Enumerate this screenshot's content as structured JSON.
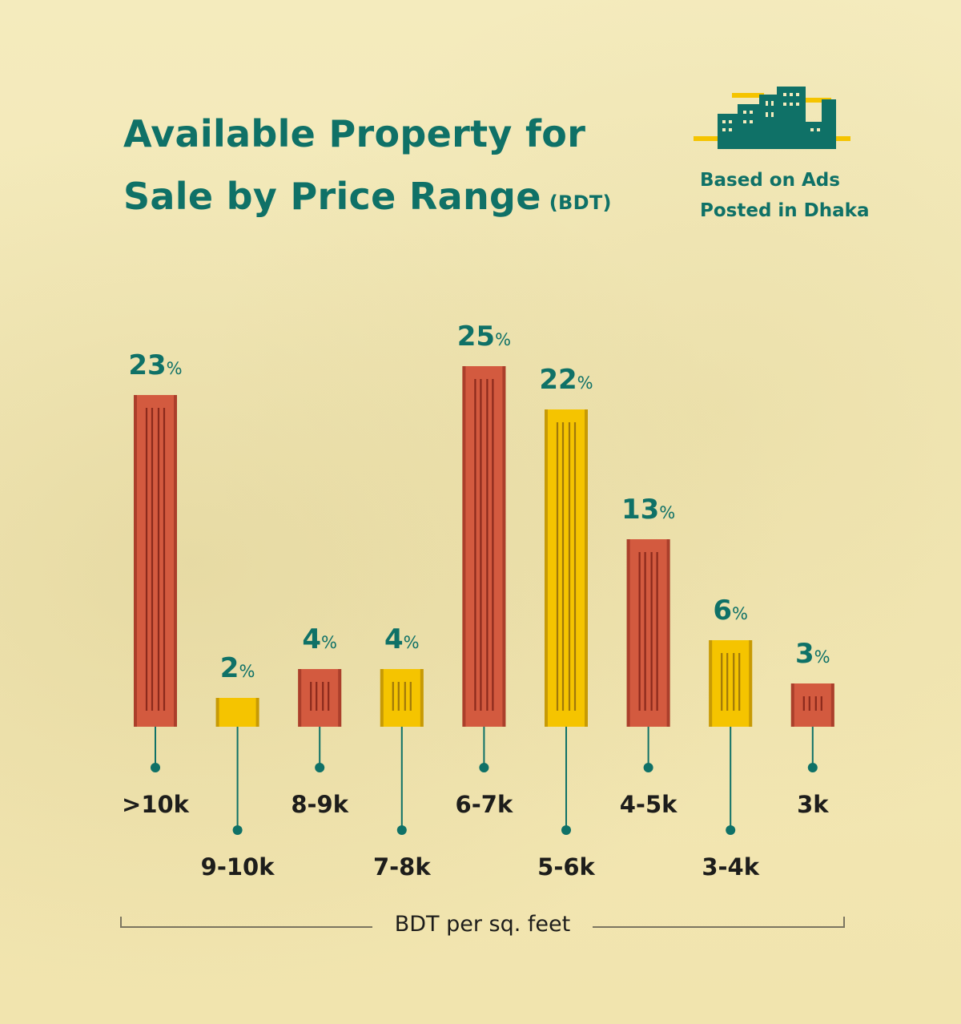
{
  "title": {
    "line1": "Available Property for",
    "line2": "Sale by Price Range",
    "unit": "(BDT)"
  },
  "side_note": {
    "line1": "Based on Ads",
    "line2": "Posted in Dhaka"
  },
  "colors": {
    "red": "#d35a3f",
    "red_line": "#8b2a1c",
    "yellow": "#f5c400",
    "yellow_line": "#a0780a",
    "teal": "#0f7167"
  },
  "chart_data": {
    "type": "bar",
    "categories": [
      ">10k",
      "9-10k",
      "8-9k",
      "7-8k",
      "6-7k",
      "5-6k",
      "4-5k",
      "3-4k",
      "3k"
    ],
    "values": [
      23,
      2,
      4,
      4,
      25,
      22,
      13,
      6,
      3
    ],
    "bar_colors": [
      "red",
      "yellow",
      "red",
      "yellow",
      "red",
      "yellow",
      "red",
      "yellow",
      "red"
    ],
    "value_suffix": "%",
    "xlabel": "BDT per sq. feet",
    "ylabel": ""
  }
}
